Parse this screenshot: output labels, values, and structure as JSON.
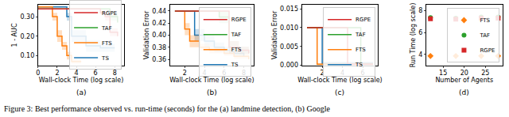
{
  "caption": "Figure 3: Best performance observed vs. run-time (seconds) for the (a) landmine detection, (b) Google",
  "chart_data": [
    {
      "type": "line",
      "panel_label": "(a)",
      "x_label": "Wall-clock Time (log scale)",
      "y_label": "1 - AUC",
      "xlim": [
        0,
        9
      ],
      "xticks": [
        0,
        2,
        4,
        6,
        8
      ],
      "ylim": [
        0.05,
        0.36
      ],
      "yticks": [
        {
          "value": 0.1,
          "label": "0.10"
        },
        {
          "value": 0.2,
          "label": "0.20"
        },
        {
          "value": 0.3,
          "label": "0.30"
        }
      ],
      "legend": "right",
      "series": [
        {
          "name": "TS",
          "color": "#1f77b4",
          "x": [
            0,
            3,
            3.5,
            5,
            6.5,
            8
          ],
          "values": [
            0.35,
            0.3,
            0.2,
            0.15,
            0.14,
            0.14
          ],
          "err": [
            0,
            0.02,
            0.03,
            0.03,
            0.02,
            0.02
          ]
        },
        {
          "name": "FTS",
          "color": "#ff7f0e",
          "x": [
            0,
            1.5,
            2,
            2.5,
            3,
            3.5,
            4.5
          ],
          "values": [
            0.35,
            0.3,
            0.2,
            0.15,
            0.1,
            0.07,
            0.07
          ],
          "err": [
            0,
            0.02,
            0.03,
            0.02,
            0.02,
            0.01,
            0.01
          ]
        },
        {
          "name": "TAF",
          "color": "#2ca02c",
          "x": [
            0,
            7,
            7.5,
            8.3
          ],
          "values": [
            0.34,
            0.34,
            0.3,
            0.27
          ],
          "err": [
            0,
            0,
            0.02,
            0.03
          ]
        },
        {
          "name": "RGPE",
          "color": "#d62728",
          "x": [
            0,
            6,
            6.5,
            7,
            7.5,
            8.3
          ],
          "values": [
            0.34,
            0.34,
            0.32,
            0.3,
            0.22,
            0.2
          ],
          "err": [
            0,
            0,
            0.01,
            0.02,
            0.02,
            0.02
          ]
        }
      ]
    },
    {
      "type": "line",
      "panel_label": "(b)",
      "x_label": "Wall-clock Time (log scale)",
      "y_label": "Validation Error",
      "xlim": [
        0.5,
        9
      ],
      "xticks": [
        2,
        4,
        6,
        8
      ],
      "ylim": [
        0.35,
        0.45
      ],
      "yticks": [
        0.36,
        0.38,
        {
          "value": 0.4,
          "label": "0.40"
        },
        0.42,
        0.44
      ],
      "legend": "upper right",
      "series": [
        {
          "name": "TS",
          "color": "#1f77b4",
          "x": [
            1,
            3,
            4,
            5,
            6,
            7,
            8
          ],
          "values": [
            0.44,
            0.4,
            0.39,
            0.38,
            0.375,
            0.37,
            0.365
          ],
          "err": [
            0,
            0.01,
            0.01,
            0.008,
            0.006,
            0.005,
            0.005
          ]
        },
        {
          "name": "FTS",
          "color": "#ff7f0e",
          "x": [
            1,
            2,
            2.5,
            3.5,
            4.5,
            6,
            7,
            8.5
          ],
          "values": [
            0.44,
            0.41,
            0.39,
            0.38,
            0.375,
            0.37,
            0.365,
            0.36
          ],
          "err": [
            0,
            0.01,
            0.01,
            0.006,
            0.005,
            0.004,
            0.004,
            0.004
          ]
        },
        {
          "name": "TAF",
          "color": "#2ca02c",
          "x": [
            1,
            5,
            5.5,
            6.5,
            7.5,
            8.5
          ],
          "values": [
            0.44,
            0.44,
            0.43,
            0.38,
            0.375,
            0.37
          ],
          "err": [
            0,
            0,
            0.01,
            0.01,
            0.006,
            0.005
          ]
        },
        {
          "name": "RGPE",
          "color": "#d62728",
          "x": [
            1,
            6,
            6.5,
            7.5,
            8.5
          ],
          "values": [
            0.44,
            0.44,
            0.38,
            0.375,
            0.37
          ],
          "err": [
            0,
            0,
            0.01,
            0.006,
            0.005
          ]
        }
      ]
    },
    {
      "type": "line",
      "panel_label": "(c)",
      "x_label": "Wall-clock Time (log scale)",
      "y_label": "Validation Error",
      "xlim": [
        0,
        7.5
      ],
      "xticks": [
        2,
        4,
        6
      ],
      "ylim": [
        0,
        0.016
      ],
      "yticks": [
        {
          "value": 0,
          "label": "0.000"
        },
        0.005,
        {
          "value": 0.01,
          "label": "0.010"
        },
        0.015
      ],
      "legend": "upper right",
      "series": [
        {
          "name": "TS",
          "color": "#1f77b4",
          "x": [
            0.5,
            2,
            7
          ],
          "values": [
            0.01,
            0.0005,
            0.0005
          ],
          "err": [
            0,
            0.0005,
            0.0005
          ]
        },
        {
          "name": "FTS",
          "color": "#ff7f0e",
          "x": [
            0.5,
            1.5,
            7
          ],
          "values": [
            0.01,
            0.0003,
            0.0003
          ],
          "err": [
            0,
            0.0003,
            0.0003
          ]
        },
        {
          "name": "TAF",
          "color": "#2ca02c",
          "x": [
            0.5,
            5.8,
            7
          ],
          "values": [
            0.01,
            0.0003,
            0.0003
          ],
          "err": [
            0,
            0.0003,
            0.0003
          ]
        },
        {
          "name": "RGPE",
          "color": "#d62728",
          "x": [
            0.5,
            4.5,
            7
          ],
          "values": [
            0.01,
            0.0003,
            0.0003
          ],
          "err": [
            0,
            0.0003,
            0.0003
          ]
        }
      ]
    },
    {
      "type": "scatter",
      "panel_label": "(d)",
      "x_label": "Number of Agents",
      "y_label": "Run Time (log scale)",
      "xlim": [
        11,
        29
      ],
      "xticks": [
        15,
        20,
        25
      ],
      "ylim": [
        3,
        8.5
      ],
      "yticks": [
        4,
        6,
        8
      ],
      "legend": "right",
      "series": [
        {
          "name": "FTS",
          "color": "#ff7f0e",
          "marker": "diamond",
          "x": [
            12,
            18,
            24,
            28
          ],
          "values": [
            3.85,
            3.85,
            3.85,
            3.85
          ]
        },
        {
          "name": "TAF",
          "color": "#2ca02c",
          "marker": "circle",
          "x": [
            12,
            18,
            24,
            28
          ],
          "values": [
            7.35,
            7.3,
            7.4,
            7.4
          ]
        },
        {
          "name": "RGPE",
          "color": "#d62728",
          "marker": "square",
          "x": [
            12,
            18,
            24,
            28
          ],
          "values": [
            7.25,
            7.2,
            7.3,
            7.3
          ]
        }
      ]
    }
  ]
}
